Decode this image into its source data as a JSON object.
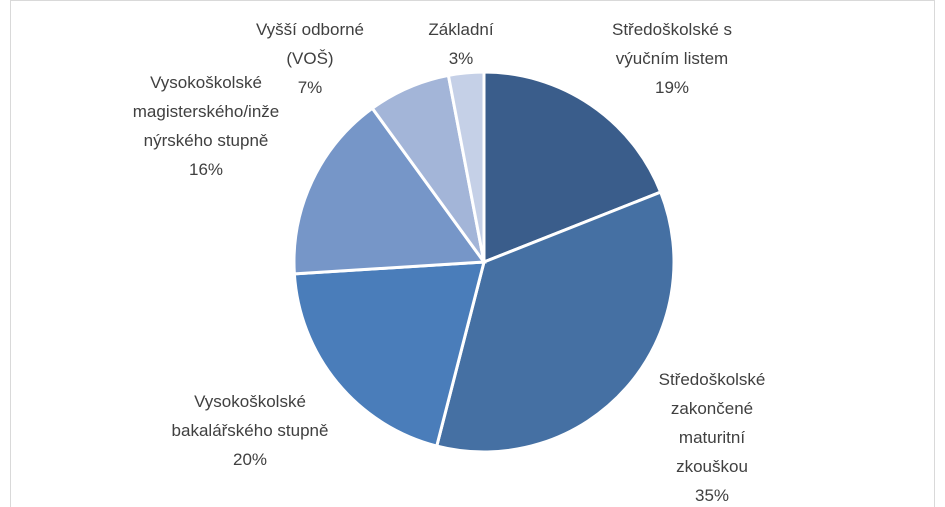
{
  "chart_data": {
    "type": "pie",
    "categories": [
      "Středoškolské s výučním listem",
      "Středoškolské zakončené maturitní zkouškou",
      "Vysokoškolské bakalářského stupně",
      "Vysokoškolské magisterského/inženýrského stupně",
      "Vyšší odborné (VOŠ)",
      "Základní"
    ],
    "values": [
      19,
      35,
      20,
      16,
      7,
      3
    ],
    "value_labels": [
      "19%",
      "35%",
      "20%",
      "16%",
      "7%",
      "3%"
    ],
    "colors": [
      "#3a5d8b",
      "#4570a3",
      "#4a7dba",
      "#7696c8",
      "#a3b5d8",
      "#c5d0e7"
    ]
  }
}
